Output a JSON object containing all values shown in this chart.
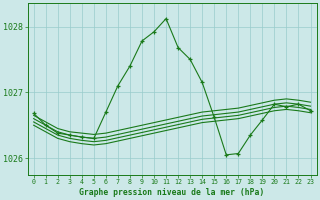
{
  "xlabel": "Graphe pression niveau de la mer (hPa)",
  "hours": [
    0,
    1,
    2,
    3,
    4,
    5,
    6,
    7,
    8,
    9,
    10,
    11,
    12,
    13,
    14,
    15,
    16,
    17,
    18,
    19,
    20,
    21,
    22,
    23
  ],
  "flat_series": [
    [
      1026.65,
      1026.55,
      1026.45,
      1026.4,
      1026.38,
      1026.36,
      1026.38,
      1026.42,
      1026.46,
      1026.5,
      1026.54,
      1026.58,
      1026.62,
      1026.66,
      1026.7,
      1026.72,
      1026.74,
      1026.76,
      1026.8,
      1026.84,
      1026.88,
      1026.9,
      1026.88,
      1026.85
    ],
    [
      1026.6,
      1026.5,
      1026.4,
      1026.35,
      1026.32,
      1026.3,
      1026.32,
      1026.36,
      1026.4,
      1026.44,
      1026.48,
      1026.52,
      1026.56,
      1026.6,
      1026.64,
      1026.66,
      1026.68,
      1026.7,
      1026.74,
      1026.78,
      1026.82,
      1026.84,
      1026.82,
      1026.79
    ],
    [
      1026.55,
      1026.45,
      1026.35,
      1026.3,
      1026.27,
      1026.25,
      1026.27,
      1026.31,
      1026.35,
      1026.39,
      1026.43,
      1026.47,
      1026.51,
      1026.55,
      1026.59,
      1026.61,
      1026.63,
      1026.65,
      1026.69,
      1026.73,
      1026.77,
      1026.79,
      1026.77,
      1026.74
    ],
    [
      1026.5,
      1026.4,
      1026.3,
      1026.25,
      1026.22,
      1026.2,
      1026.22,
      1026.26,
      1026.3,
      1026.34,
      1026.38,
      1026.42,
      1026.46,
      1026.5,
      1026.54,
      1026.56,
      1026.58,
      1026.6,
      1026.64,
      1026.68,
      1026.72,
      1026.74,
      1026.72,
      1026.69
    ]
  ],
  "main_y": [
    1026.68,
    1026.5,
    1026.38,
    1026.35,
    1026.32,
    1026.3,
    1026.7,
    1027.1,
    1027.4,
    1027.78,
    1027.92,
    1028.12,
    1027.68,
    1027.5,
    1027.15,
    1026.62,
    1026.05,
    1026.07,
    1026.35,
    1026.58,
    1026.82,
    1026.78,
    1026.82,
    1026.72
  ],
  "line_color": "#1a7a1a",
  "bg_color": "#cce8e8",
  "grid_color": "#99cccc",
  "ylim": [
    1025.75,
    1028.35
  ],
  "yticks": [
    1026,
    1027,
    1028
  ],
  "xticks": [
    0,
    1,
    2,
    3,
    4,
    5,
    6,
    7,
    8,
    9,
    10,
    11,
    12,
    13,
    14,
    15,
    16,
    17,
    18,
    19,
    20,
    21,
    22,
    23
  ]
}
